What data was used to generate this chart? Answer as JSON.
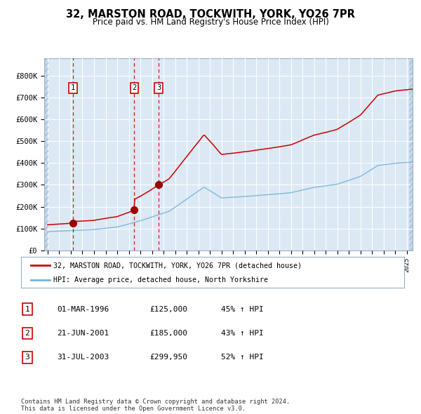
{
  "title": "32, MARSTON ROAD, TOCKWITH, YORK, YO26 7PR",
  "subtitle": "Price paid vs. HM Land Registry's House Price Index (HPI)",
  "sale_year_floats": [
    1996.17,
    2001.47,
    2003.58
  ],
  "sale_prices": [
    125000,
    185000,
    299950
  ],
  "sale_labels": [
    "1",
    "2",
    "3"
  ],
  "legend_line1": "32, MARSTON ROAD, TOCKWITH, YORK, YO26 7PR (detached house)",
  "legend_line2": "HPI: Average price, detached house, North Yorkshire",
  "table_rows": [
    [
      "1",
      "01-MAR-1996",
      "£125,000",
      "45% ↑ HPI"
    ],
    [
      "2",
      "21-JUN-2001",
      "£185,000",
      "43% ↑ HPI"
    ],
    [
      "3",
      "31-JUL-2003",
      "£299,950",
      "52% ↑ HPI"
    ]
  ],
  "footer": "Contains HM Land Registry data © Crown copyright and database right 2024.\nThis data is licensed under the Open Government Licence v3.0.",
  "hpi_color": "#7ab3d8",
  "price_color": "#cc0000",
  "point_color": "#990000",
  "dashed_color": "#dd0000",
  "grid_color": "#c5d8ea",
  "chart_bg": "#dce9f5",
  "plot_bg": "#ffffff",
  "hatch_bg": "#c5d8ea",
  "ylim": [
    0,
    880000
  ],
  "yticks": [
    0,
    100000,
    200000,
    300000,
    400000,
    500000,
    600000,
    700000,
    800000
  ],
  "ytick_labels": [
    "£0",
    "£100K",
    "£200K",
    "£300K",
    "£400K",
    "£500K",
    "£600K",
    "£700K",
    "£800K"
  ],
  "xlim_start": 1993.7,
  "xlim_end": 2025.5,
  "hatch_right_start": 2025.17
}
